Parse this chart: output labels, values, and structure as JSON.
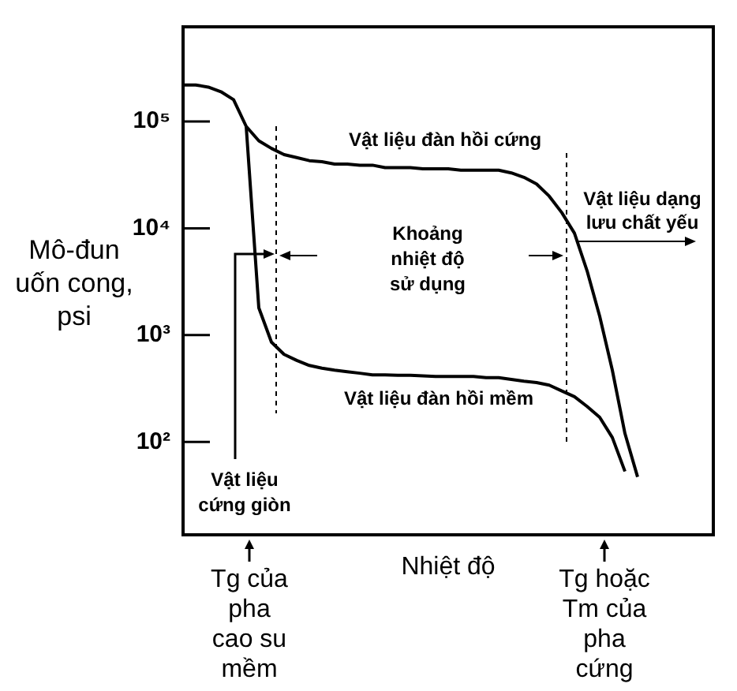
{
  "chart_data": {
    "type": "line",
    "xlabel": "Nhiệt độ",
    "ylabel": "Mô-đun uốn cong, psi",
    "categories": [
      null,
      null,
      null,
      null,
      null,
      null,
      null,
      null,
      null,
      null,
      null,
      null,
      null,
      null,
      null,
      null,
      null,
      null,
      null,
      null,
      null,
      null,
      null,
      null,
      null,
      null,
      null,
      null,
      null,
      null,
      null,
      null,
      null,
      null,
      null,
      null,
      null,
      null,
      null,
      null,
      null,
      null,
      null
    ],
    "series": [
      {
        "name": "Vật liệu đàn hồi cứng",
        "color": "#000000",
        "values": [
          220000,
          220000,
          210000,
          190000,
          160000,
          90000,
          66000,
          56000,
          49000,
          46000,
          43000,
          42000,
          40000,
          40000,
          39000,
          39000,
          37000,
          37000,
          37000,
          36000,
          36000,
          36000,
          35000,
          35000,
          35000,
          35000,
          33000,
          30000,
          26000,
          20000,
          14000,
          9000,
          4000,
          1500,
          470,
          120,
          47,
          null,
          null,
          null,
          null,
          null,
          null
        ]
      },
      {
        "name": "Vật liệu đàn hồi mềm",
        "color": "#000000",
        "values": [
          null,
          null,
          null,
          null,
          null,
          90000,
          1800,
          860,
          660,
          580,
          520,
          490,
          470,
          455,
          440,
          425,
          425,
          420,
          420,
          415,
          410,
          410,
          410,
          410,
          400,
          400,
          385,
          370,
          360,
          340,
          300,
          265,
          215,
          170,
          110,
          53,
          null,
          null,
          null,
          null,
          null,
          null,
          null
        ]
      }
    ],
    "ylim": [
      13.5,
      770000
    ],
    "yticks": [
      {
        "value": 100,
        "label": "10²"
      },
      {
        "value": 1000,
        "label": "10³"
      },
      {
        "value": 10000,
        "label": "10⁴"
      },
      {
        "value": 100000,
        "label": "10⁵"
      }
    ],
    "log": "y",
    "grid": false,
    "legend": false,
    "marker": "none",
    "line_style": "solid",
    "tick_labels": "y",
    "annotations": [
      "Vật liệu dạng lưu chất yếu",
      "Khoảng nhiệt độ sử dụng",
      "Vật liệu cứng giòn",
      "Tg của pha cao su mềm",
      "Tg hoặc Tm của pha cứng"
    ]
  }
}
